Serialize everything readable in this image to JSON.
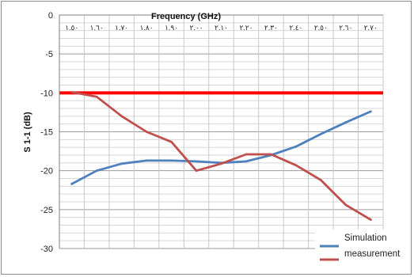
{
  "chart_data": {
    "type": "line",
    "xlabel": "Frequency (GHz)",
    "ylabel": "S 1-1 (dB)",
    "x": [
      1.5,
      1.6,
      1.7,
      1.8,
      1.9,
      2.0,
      2.1,
      2.2,
      2.3,
      2.4,
      2.5,
      2.6,
      2.7
    ],
    "x_tick_labels": [
      "١.٥٠",
      "١.٦٠",
      "١.٧٠",
      "١.٨٠",
      "١.٩٠",
      "٢.٠٠",
      "٢.١٠",
      "٢.٢٠",
      "٢.٣٠",
      "٢.٤٠",
      "٢.٥٠",
      "٢.٦٠",
      "٢.٧٠"
    ],
    "ylim": [
      -30,
      0
    ],
    "y_ticks": [
      0,
      -5,
      -10,
      -15,
      -20,
      -25,
      -30
    ],
    "grid": true,
    "legend_position": "bottom-right",
    "reference_line": {
      "y": -10,
      "color": "#ff0000"
    },
    "series": [
      {
        "name": "Simulation",
        "color": "#4f81bd",
        "values": [
          -21.7,
          -20.0,
          -19.1,
          -18.7,
          -18.7,
          -18.8,
          -19.0,
          -18.8,
          -18.0,
          -16.9,
          -15.3,
          -13.8,
          -12.4
        ]
      },
      {
        "name": "measurement",
        "color": "#c0504d",
        "values": [
          -9.9,
          -10.5,
          -13.0,
          -15.0,
          -16.3,
          -20.0,
          -19.1,
          -17.9,
          -17.9,
          -19.3,
          -21.2,
          -24.4,
          -26.3
        ]
      }
    ]
  }
}
